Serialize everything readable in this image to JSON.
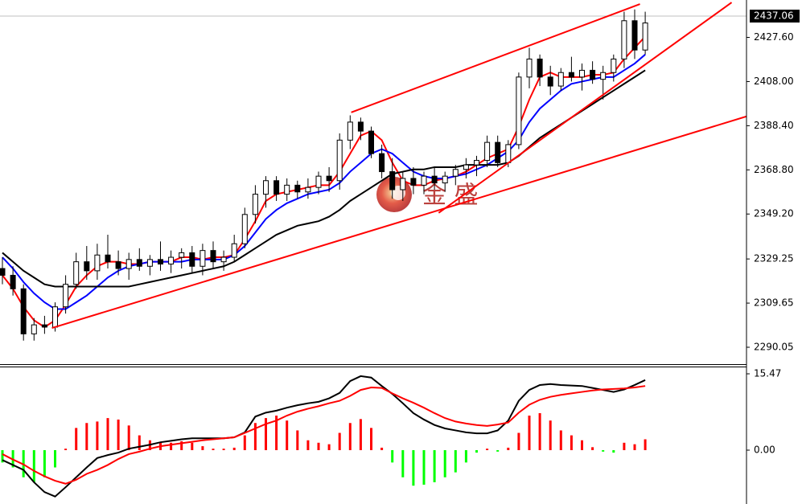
{
  "chart_data": [
    {
      "type": "candlestick",
      "annotation": "金 盛",
      "current_price": 2437.06,
      "ylim": [
        2282.56,
        2444.2
      ],
      "yticks": [
        {
          "value": 2427.6,
          "label": "2427.60"
        },
        {
          "value": 2408,
          "label": "2408.00"
        },
        {
          "value": 2388.4,
          "label": "2388.40"
        },
        {
          "value": 2368.8,
          "label": "2368.80"
        },
        {
          "value": 2349.2,
          "label": "2349.20"
        },
        2329.25,
        2309.65,
        2290.05
      ],
      "candle_colors": {
        "up": "#ffffff",
        "down": "#000000"
      },
      "open": [
        2325,
        2322,
        2316,
        2296,
        2300,
        2299,
        2308,
        2318,
        2328,
        2324,
        2331,
        2328,
        2325,
        2329,
        2326,
        2329,
        2327,
        2330,
        2332,
        2326,
        2333,
        2328,
        2330,
        2336,
        2349,
        2358,
        2364,
        2358,
        2362,
        2359,
        2361,
        2366,
        2364,
        2382,
        2390,
        2386,
        2376,
        2368,
        2360,
        2365,
        2362,
        2366,
        2363,
        2366,
        2369,
        2371,
        2373,
        2381,
        2372,
        2380,
        2410,
        2418,
        2410,
        2406,
        2412,
        2410,
        2413,
        2409,
        2412,
        2418,
        2435,
        2422
      ],
      "high": [
        2330,
        2326,
        2318,
        2303,
        2304,
        2310,
        2322,
        2332,
        2335,
        2336,
        2340,
        2333,
        2332,
        2334,
        2331,
        2337,
        2333,
        2334,
        2335,
        2336,
        2337,
        2333,
        2340,
        2352,
        2362,
        2366,
        2366,
        2365,
        2364,
        2365,
        2368,
        2370,
        2385,
        2393,
        2392,
        2388,
        2380,
        2374,
        2368,
        2370,
        2368,
        2370,
        2368,
        2371,
        2374,
        2375,
        2384,
        2384,
        2382,
        2412,
        2423,
        2420,
        2415,
        2414,
        2419,
        2416,
        2417,
        2415,
        2420,
        2439,
        2440,
        2439
      ],
      "low": [
        2318,
        2313,
        2293,
        2293,
        2296,
        2297,
        2305,
        2316,
        2320,
        2320,
        2325,
        2322,
        2320,
        2324,
        2322,
        2324,
        2323,
        2325,
        2323,
        2322,
        2325,
        2324,
        2328,
        2334,
        2345,
        2352,
        2355,
        2355,
        2356,
        2356,
        2358,
        2359,
        2360,
        2378,
        2382,
        2374,
        2365,
        2356,
        2355,
        2358,
        2358,
        2360,
        2359,
        2362,
        2365,
        2366,
        2370,
        2370,
        2370,
        2378,
        2405,
        2406,
        2402,
        2404,
        2408,
        2404,
        2407,
        2400,
        2408,
        2414,
        2418,
        2420
      ],
      "close": [
        2322,
        2316,
        2296,
        2300,
        2299,
        2308,
        2318,
        2328,
        2324,
        2331,
        2328,
        2325,
        2329,
        2326,
        2329,
        2327,
        2330,
        2332,
        2326,
        2333,
        2328,
        2330,
        2336,
        2349,
        2358,
        2364,
        2358,
        2362,
        2359,
        2361,
        2366,
        2364,
        2382,
        2390,
        2386,
        2376,
        2368,
        2360,
        2365,
        2362,
        2366,
        2363,
        2366,
        2369,
        2371,
        2373,
        2381,
        2372,
        2380,
        2410,
        2418,
        2410,
        2406,
        2412,
        2410,
        2413,
        2409,
        2412,
        2418,
        2435,
        2422,
        2434
      ],
      "series": [
        {
          "color": "#ff0000",
          "values": [
            2322,
            2316,
            2308,
            2302,
            2299,
            2302,
            2309,
            2317,
            2322,
            2326,
            2328,
            2328,
            2327,
            2327,
            2328,
            2328,
            2328,
            2330,
            2330,
            2329,
            2330,
            2330,
            2331,
            2338,
            2346,
            2355,
            2358,
            2359,
            2360,
            2361,
            2362,
            2362,
            2368,
            2376,
            2384,
            2386,
            2382,
            2372,
            2364,
            2362,
            2362,
            2364,
            2365,
            2366,
            2368,
            2371,
            2374,
            2376,
            2378,
            2388,
            2400,
            2410,
            2412,
            2410,
            2410,
            2410,
            2411,
            2411,
            2412,
            2418,
            2423,
            2428
          ]
        },
        {
          "color": "#0000ff",
          "values": [
            2330,
            2325,
            2319,
            2314,
            2310,
            2307,
            2307,
            2310,
            2313,
            2317,
            2321,
            2324,
            2326,
            2327,
            2328,
            2328,
            2328,
            2328,
            2329,
            2329,
            2329,
            2329,
            2331,
            2335,
            2341,
            2347,
            2351,
            2354,
            2356,
            2358,
            2359,
            2360,
            2363,
            2368,
            2372,
            2376,
            2378,
            2376,
            2372,
            2368,
            2366,
            2365,
            2365,
            2366,
            2367,
            2369,
            2371,
            2374,
            2377,
            2382,
            2390,
            2396,
            2400,
            2404,
            2407,
            2408,
            2409,
            2410,
            2410,
            2413,
            2416,
            2420
          ]
        },
        {
          "color": "#000000",
          "values": [
            2332,
            2328,
            2324,
            2321,
            2318,
            2317,
            2317,
            2317,
            2317,
            2317,
            2317,
            2317,
            2317,
            2318,
            2319,
            2320,
            2321,
            2322,
            2323,
            2324,
            2325,
            2326,
            2328,
            2331,
            2334,
            2337,
            2340,
            2342,
            2344,
            2345,
            2346,
            2348,
            2351,
            2355,
            2358,
            2361,
            2364,
            2367,
            2368,
            2369,
            2369,
            2370,
            2370,
            2370,
            2371,
            2371,
            2371,
            2371,
            2372,
            2375,
            2379,
            2383,
            2386,
            2389,
            2392,
            2395,
            2398,
            2401,
            2404,
            2407,
            2410,
            2413
          ]
        }
      ],
      "lines": [
        {
          "color": "#ff0000",
          "x": [
            33.1,
            60.5
          ],
          "y": [
            2394.3,
            2442.4
          ]
        },
        {
          "color": "#ff0000",
          "x": [
            41.4,
            69.2
          ],
          "y": [
            2349.7,
            2443.1
          ]
        },
        {
          "color": "#ff0000",
          "x": [
            4.7,
            70.6
          ],
          "y": [
            2298.6,
            2392.5
          ]
        }
      ]
    },
    {
      "type": "macd",
      "ylim": [
        -10.91,
        16.94
      ],
      "yticks": [
        15.47,
        {
          "value": 0,
          "label": "0.00"
        }
      ],
      "bar_colors": {
        "up": "#ff0000",
        "down": "#00ff00"
      },
      "values": [
        -2.5,
        -3.5,
        -5.5,
        -6.5,
        -5.5,
        -3.5,
        0.3,
        4.5,
        5.5,
        5.8,
        6.5,
        6.2,
        5,
        3,
        2,
        1.5,
        1.5,
        1.8,
        1.5,
        0.8,
        0.3,
        0.3,
        0.5,
        3,
        5.5,
        6.5,
        7,
        6,
        4,
        2,
        1.5,
        1.2,
        3.5,
        5.5,
        6.3,
        4.5,
        0.5,
        -2.5,
        -5.5,
        -7.2,
        -7,
        -6.5,
        -5.5,
        -4.5,
        -2.5,
        -0.5,
        0.3,
        -0.3,
        0.5,
        3.5,
        7,
        7.5,
        6,
        4,
        3,
        2,
        0.6,
        -0.3,
        -0.5,
        1.5,
        1.2,
        2.2
      ],
      "series": [
        {
          "color": "#000000",
          "values": [
            -2,
            -3,
            -4,
            -6.5,
            -8.5,
            -9.4,
            -7.5,
            -5.5,
            -3.5,
            -1.6,
            -1,
            -0.5,
            0.3,
            0.7,
            1.1,
            1.6,
            1.9,
            2.2,
            2.4,
            2.4,
            2.4,
            2.4,
            2.6,
            3.6,
            6.8,
            7.6,
            8,
            8.6,
            9.1,
            9.5,
            9.8,
            10.5,
            11.6,
            14,
            15,
            14.7,
            13,
            11.4,
            9.5,
            7.5,
            6.2,
            5.1,
            4.4,
            4,
            3.6,
            3.4,
            3.4,
            4,
            6,
            10,
            12.2,
            13.2,
            13.4,
            13.2,
            13.1,
            13,
            12.6,
            12.2,
            11.8,
            12.3,
            13.2,
            14.2
          ]
        },
        {
          "color": "#ff0000",
          "values": [
            -0.8,
            -1.9,
            -2.9,
            -4.2,
            -5.3,
            -6.2,
            -6.8,
            -6,
            -4.8,
            -4,
            -3,
            -1.8,
            -0.8,
            -0.3,
            0.3,
            0.8,
            1.1,
            1.4,
            1.7,
            2,
            2.2,
            2.4,
            2.6,
            3.5,
            4.4,
            5.3,
            6,
            7,
            7.8,
            8.4,
            8.9,
            9.5,
            10,
            11,
            12.2,
            12.7,
            12.6,
            11.5,
            10.5,
            9.6,
            8.6,
            7.5,
            6.5,
            5.8,
            5.4,
            5.1,
            4.9,
            5.2,
            5.6,
            7.6,
            9.2,
            10.2,
            10.8,
            11.2,
            11.5,
            11.8,
            12.1,
            12.3,
            12.4,
            12.5,
            12.7,
            13
          ]
        }
      ]
    }
  ]
}
